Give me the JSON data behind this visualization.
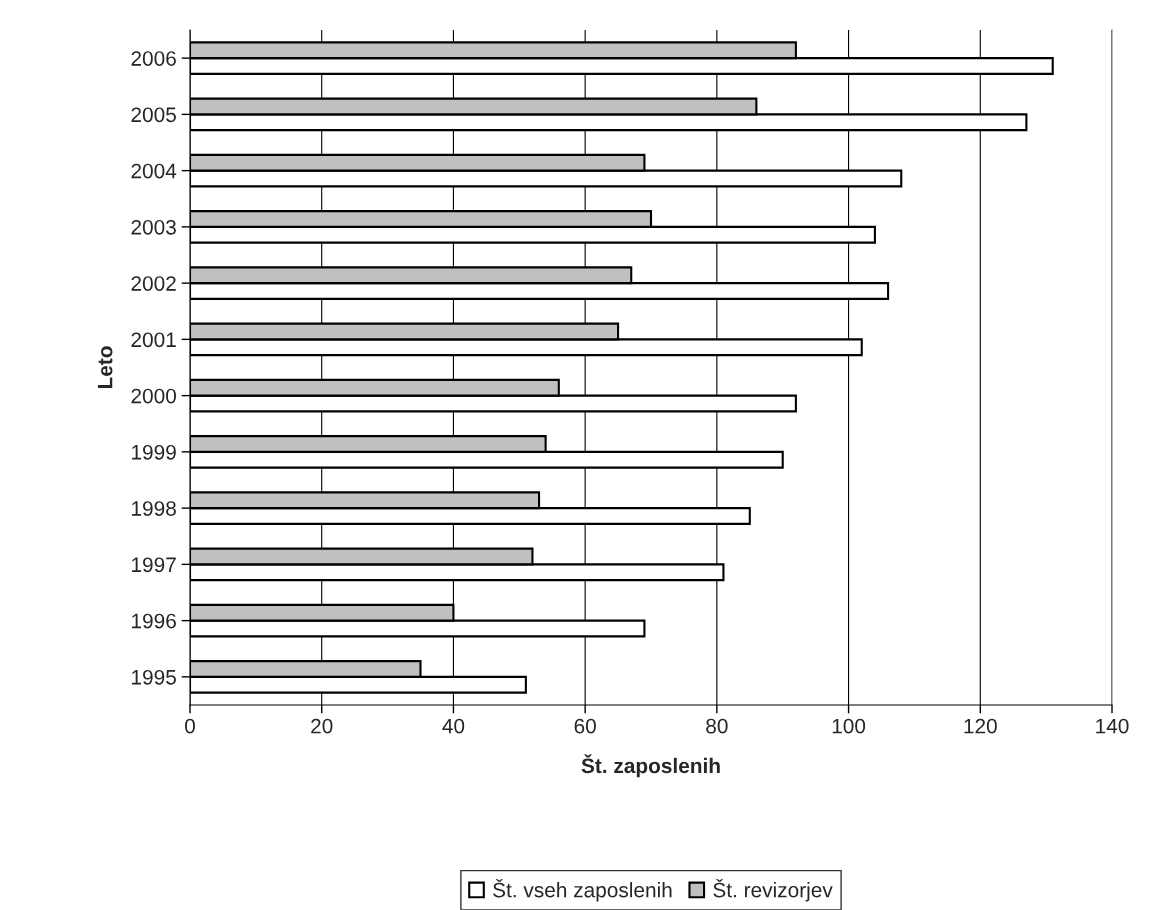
{
  "chart_data": {
    "type": "bar",
    "orientation": "horizontal",
    "xlabel": "Št. zaposlenih",
    "ylabel": "Leto",
    "categories": [
      "2006",
      "2005",
      "2004",
      "2003",
      "2002",
      "2001",
      "2000",
      "1999",
      "1998",
      "1997",
      "1996",
      "1995"
    ],
    "series": [
      {
        "name": "Št. vseh zaposlenih",
        "color": "#ffffff",
        "values": [
          131,
          127,
          108,
          104,
          106,
          102,
          92,
          90,
          85,
          81,
          69,
          51
        ]
      },
      {
        "name": "Št. revizorjev",
        "color": "#c0c0c0",
        "values": [
          92,
          86,
          69,
          70,
          67,
          65,
          56,
          54,
          53,
          52,
          40,
          35
        ]
      }
    ],
    "xlim": [
      0,
      140
    ],
    "xticks": [
      0,
      20,
      40,
      60,
      80,
      100,
      120,
      140
    ],
    "grid": "x",
    "legend": "bottom"
  }
}
